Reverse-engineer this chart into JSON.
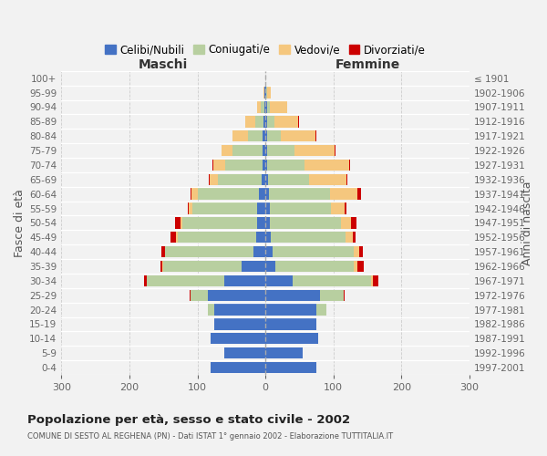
{
  "age_groups": [
    "0-4",
    "5-9",
    "10-14",
    "15-19",
    "20-24",
    "25-29",
    "30-34",
    "35-39",
    "40-44",
    "45-49",
    "50-54",
    "55-59",
    "60-64",
    "65-69",
    "70-74",
    "75-79",
    "80-84",
    "85-89",
    "90-94",
    "95-99",
    "100+"
  ],
  "birth_years": [
    "1997-2001",
    "1992-1996",
    "1987-1991",
    "1982-1986",
    "1977-1981",
    "1972-1976",
    "1967-1971",
    "1962-1966",
    "1957-1961",
    "1952-1956",
    "1947-1951",
    "1942-1946",
    "1937-1941",
    "1932-1936",
    "1927-1931",
    "1922-1926",
    "1917-1921",
    "1912-1916",
    "1907-1911",
    "1902-1906",
    "≤ 1901"
  ],
  "males_celibi": [
    80,
    60,
    80,
    75,
    75,
    85,
    60,
    35,
    17,
    14,
    12,
    12,
    9,
    5,
    4,
    4,
    4,
    3,
    2,
    1,
    0
  ],
  "males_coniugati": [
    0,
    0,
    0,
    0,
    10,
    25,
    115,
    115,
    130,
    115,
    110,
    95,
    90,
    65,
    55,
    45,
    22,
    12,
    5,
    1,
    0
  ],
  "males_vedovi": [
    0,
    0,
    0,
    0,
    0,
    0,
    0,
    1,
    1,
    2,
    3,
    6,
    10,
    12,
    18,
    15,
    22,
    15,
    5,
    1,
    0
  ],
  "males_divorziati": [
    0,
    0,
    0,
    0,
    0,
    1,
    3,
    3,
    5,
    8,
    8,
    1,
    1,
    1,
    1,
    0,
    0,
    0,
    0,
    0,
    0
  ],
  "females_nubili": [
    75,
    55,
    78,
    75,
    75,
    80,
    40,
    15,
    10,
    8,
    6,
    6,
    5,
    4,
    3,
    2,
    3,
    3,
    2,
    1,
    0
  ],
  "females_coniugate": [
    0,
    0,
    0,
    0,
    15,
    35,
    115,
    115,
    120,
    110,
    105,
    90,
    90,
    60,
    55,
    40,
    20,
    10,
    5,
    2,
    0
  ],
  "females_vedove": [
    0,
    0,
    0,
    0,
    0,
    0,
    3,
    5,
    8,
    10,
    15,
    20,
    40,
    55,
    65,
    60,
    50,
    35,
    25,
    5,
    0
  ],
  "females_divorziate": [
    0,
    0,
    0,
    0,
    0,
    2,
    8,
    10,
    5,
    5,
    8,
    3,
    5,
    1,
    1,
    1,
    2,
    1,
    0,
    0,
    0
  ],
  "color_celibi": "#4472c4",
  "color_coniugati": "#b8cfa0",
  "color_vedovi": "#f5c77e",
  "color_divorziati": "#cc0000",
  "xlim": 300,
  "xticks": [
    -300,
    -200,
    -100,
    0,
    100,
    200,
    300
  ],
  "xticklabels": [
    "300",
    "200",
    "100",
    "0",
    "100",
    "200",
    "300"
  ],
  "title": "Popolazione per età, sesso e stato civile - 2002",
  "subtitle": "COMUNE DI SESTO AL REGHENA (PN) - Dati ISTAT 1° gennaio 2002 - Elaborazione TUTTITALIA.IT",
  "ylabel_left": "Fasce di età",
  "ylabel_right": "Anni di nascita",
  "legend_labels": [
    "Celibi/Nubili",
    "Coniugati/e",
    "Vedovi/e",
    "Divorziati/e"
  ],
  "maschi_label": "Maschi",
  "femmine_label": "Femmine",
  "bg_color": "#f2f2f2"
}
